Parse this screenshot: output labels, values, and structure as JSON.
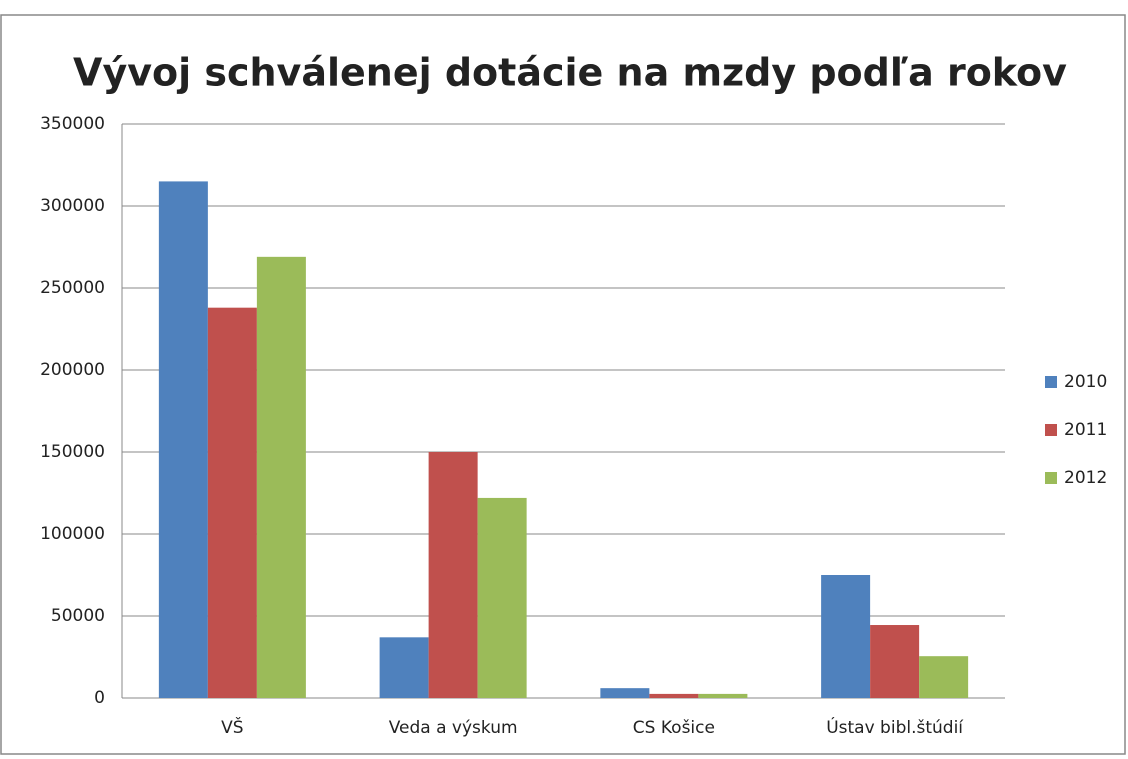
{
  "chart_data": {
    "type": "bar",
    "title": "Vývoj schválenej dotácie na mzdy podľa rokov",
    "categories": [
      "VŠ",
      "Veda a výskum",
      "CS Košice",
      "Ústav bibl.štúdií"
    ],
    "series": [
      {
        "name": "2010",
        "color": "#4f81bd",
        "values": [
          315000,
          37000,
          6000,
          75000
        ]
      },
      {
        "name": "2011",
        "color": "#c0504d",
        "values": [
          238000,
          150000,
          2500,
          44500
        ]
      },
      {
        "name": "2012",
        "color": "#9bbb59",
        "values": [
          269000,
          122000,
          2500,
          25500
        ]
      }
    ],
    "ylim": [
      0,
      350000
    ],
    "yticks": [
      0,
      50000,
      100000,
      150000,
      200000,
      250000,
      300000,
      350000
    ],
    "grid": true,
    "legend": "right"
  }
}
